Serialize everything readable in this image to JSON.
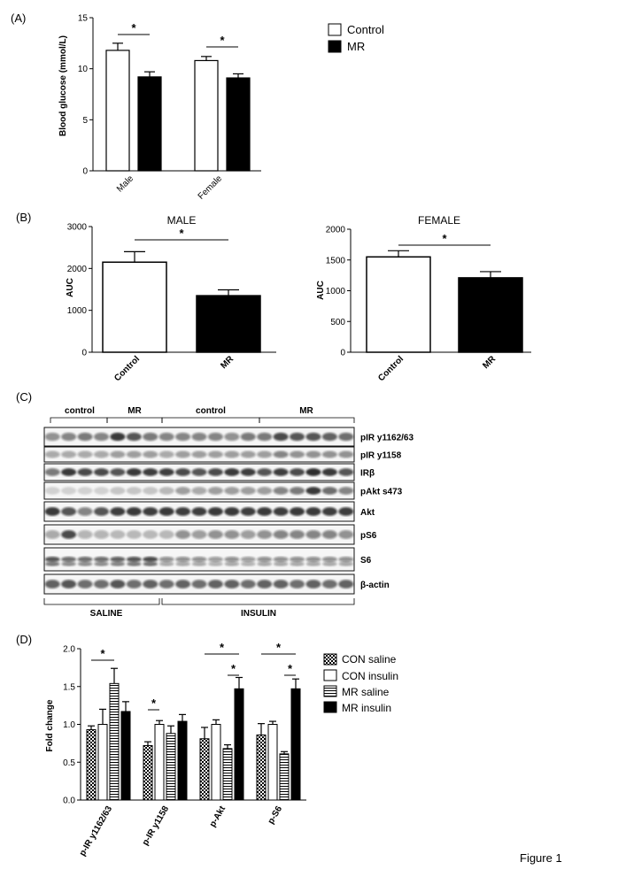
{
  "panel_labels": [
    "(A)",
    "(B)",
    "(C)",
    "(D)"
  ],
  "figure_label": "Figure 1",
  "chart_data": [
    {
      "id": "A",
      "type": "bar",
      "categories": [
        "Male",
        "Female"
      ],
      "series": [
        {
          "name": "Control",
          "color": "#ffffff",
          "values": [
            11.8,
            10.8
          ],
          "errors": [
            0.7,
            0.4
          ]
        },
        {
          "name": "MR",
          "color": "#000000",
          "values": [
            9.2,
            9.1
          ],
          "errors": [
            0.5,
            0.4
          ]
        }
      ],
      "title": "",
      "xlabel": "",
      "ylabel": "Blood glucose (mmol/L)",
      "ylim": [
        0,
        15
      ],
      "yticks": [
        0,
        5,
        10,
        15
      ],
      "legend": "top-right",
      "significance": [
        "*",
        "*"
      ]
    },
    {
      "id": "B-male",
      "type": "bar",
      "categories": [
        "Control",
        "MR"
      ],
      "values": [
        2150,
        1350
      ],
      "errors": [
        250,
        140
      ],
      "colors": [
        "#ffffff",
        "#000000"
      ],
      "title": "MALE",
      "xlabel": "",
      "ylabel": "AUC",
      "ylim": [
        0,
        3000
      ],
      "yticks": [
        0,
        1000,
        2000,
        3000
      ],
      "significance": [
        "*"
      ]
    },
    {
      "id": "B-female",
      "type": "bar",
      "categories": [
        "Control",
        "MR"
      ],
      "values": [
        1550,
        1210
      ],
      "errors": [
        100,
        100
      ],
      "colors": [
        "#ffffff",
        "#000000"
      ],
      "title": "FEMALE",
      "xlabel": "",
      "ylabel": "AUC",
      "ylim": [
        0,
        2000
      ],
      "yticks": [
        0,
        500,
        1000,
        1500,
        2000
      ],
      "significance": [
        "*"
      ]
    },
    {
      "id": "D",
      "type": "bar",
      "categories": [
        "p-IR y1162/63",
        "p-IR y1158",
        "p-Akt",
        "p-S6"
      ],
      "series": [
        {
          "name": "CON saline",
          "pattern": "checker",
          "values": [
            0.93,
            0.72,
            0.81,
            0.86
          ],
          "errors": [
            0.05,
            0.05,
            0.15,
            0.15
          ]
        },
        {
          "name": "CON insulin",
          "pattern": "white",
          "values": [
            1.0,
            1.0,
            1.0,
            1.0
          ],
          "errors": [
            0.2,
            0.05,
            0.06,
            0.04
          ]
        },
        {
          "name": "MR saline",
          "pattern": "horizontal-stripes",
          "values": [
            1.54,
            0.88,
            0.68,
            0.61
          ],
          "errors": [
            0.2,
            0.1,
            0.05,
            0.03
          ]
        },
        {
          "name": "MR insulin",
          "pattern": "black",
          "values": [
            1.17,
            1.04,
            1.47,
            1.47
          ],
          "errors": [
            0.13,
            0.09,
            0.15,
            0.13
          ]
        }
      ],
      "title": "",
      "xlabel": "",
      "ylabel": "Fold change",
      "ylim": [
        0,
        2.0
      ],
      "yticks": [
        "0.0",
        "0.5",
        "1.0",
        "1.5",
        "2.0"
      ],
      "legend": "top-right",
      "significance": [
        "*",
        "*",
        "*",
        "*",
        "*",
        "*"
      ]
    }
  ],
  "blot": {
    "top_groups": [
      "control",
      "MR",
      "control",
      "MR"
    ],
    "bottom_groups": [
      "SALINE",
      "INSULIN"
    ],
    "bands": [
      "pIR y1162/63",
      "pIR y1158",
      "IRβ",
      "pAkt s473",
      "Akt",
      "pS6",
      "S6",
      "β-actin"
    ]
  }
}
